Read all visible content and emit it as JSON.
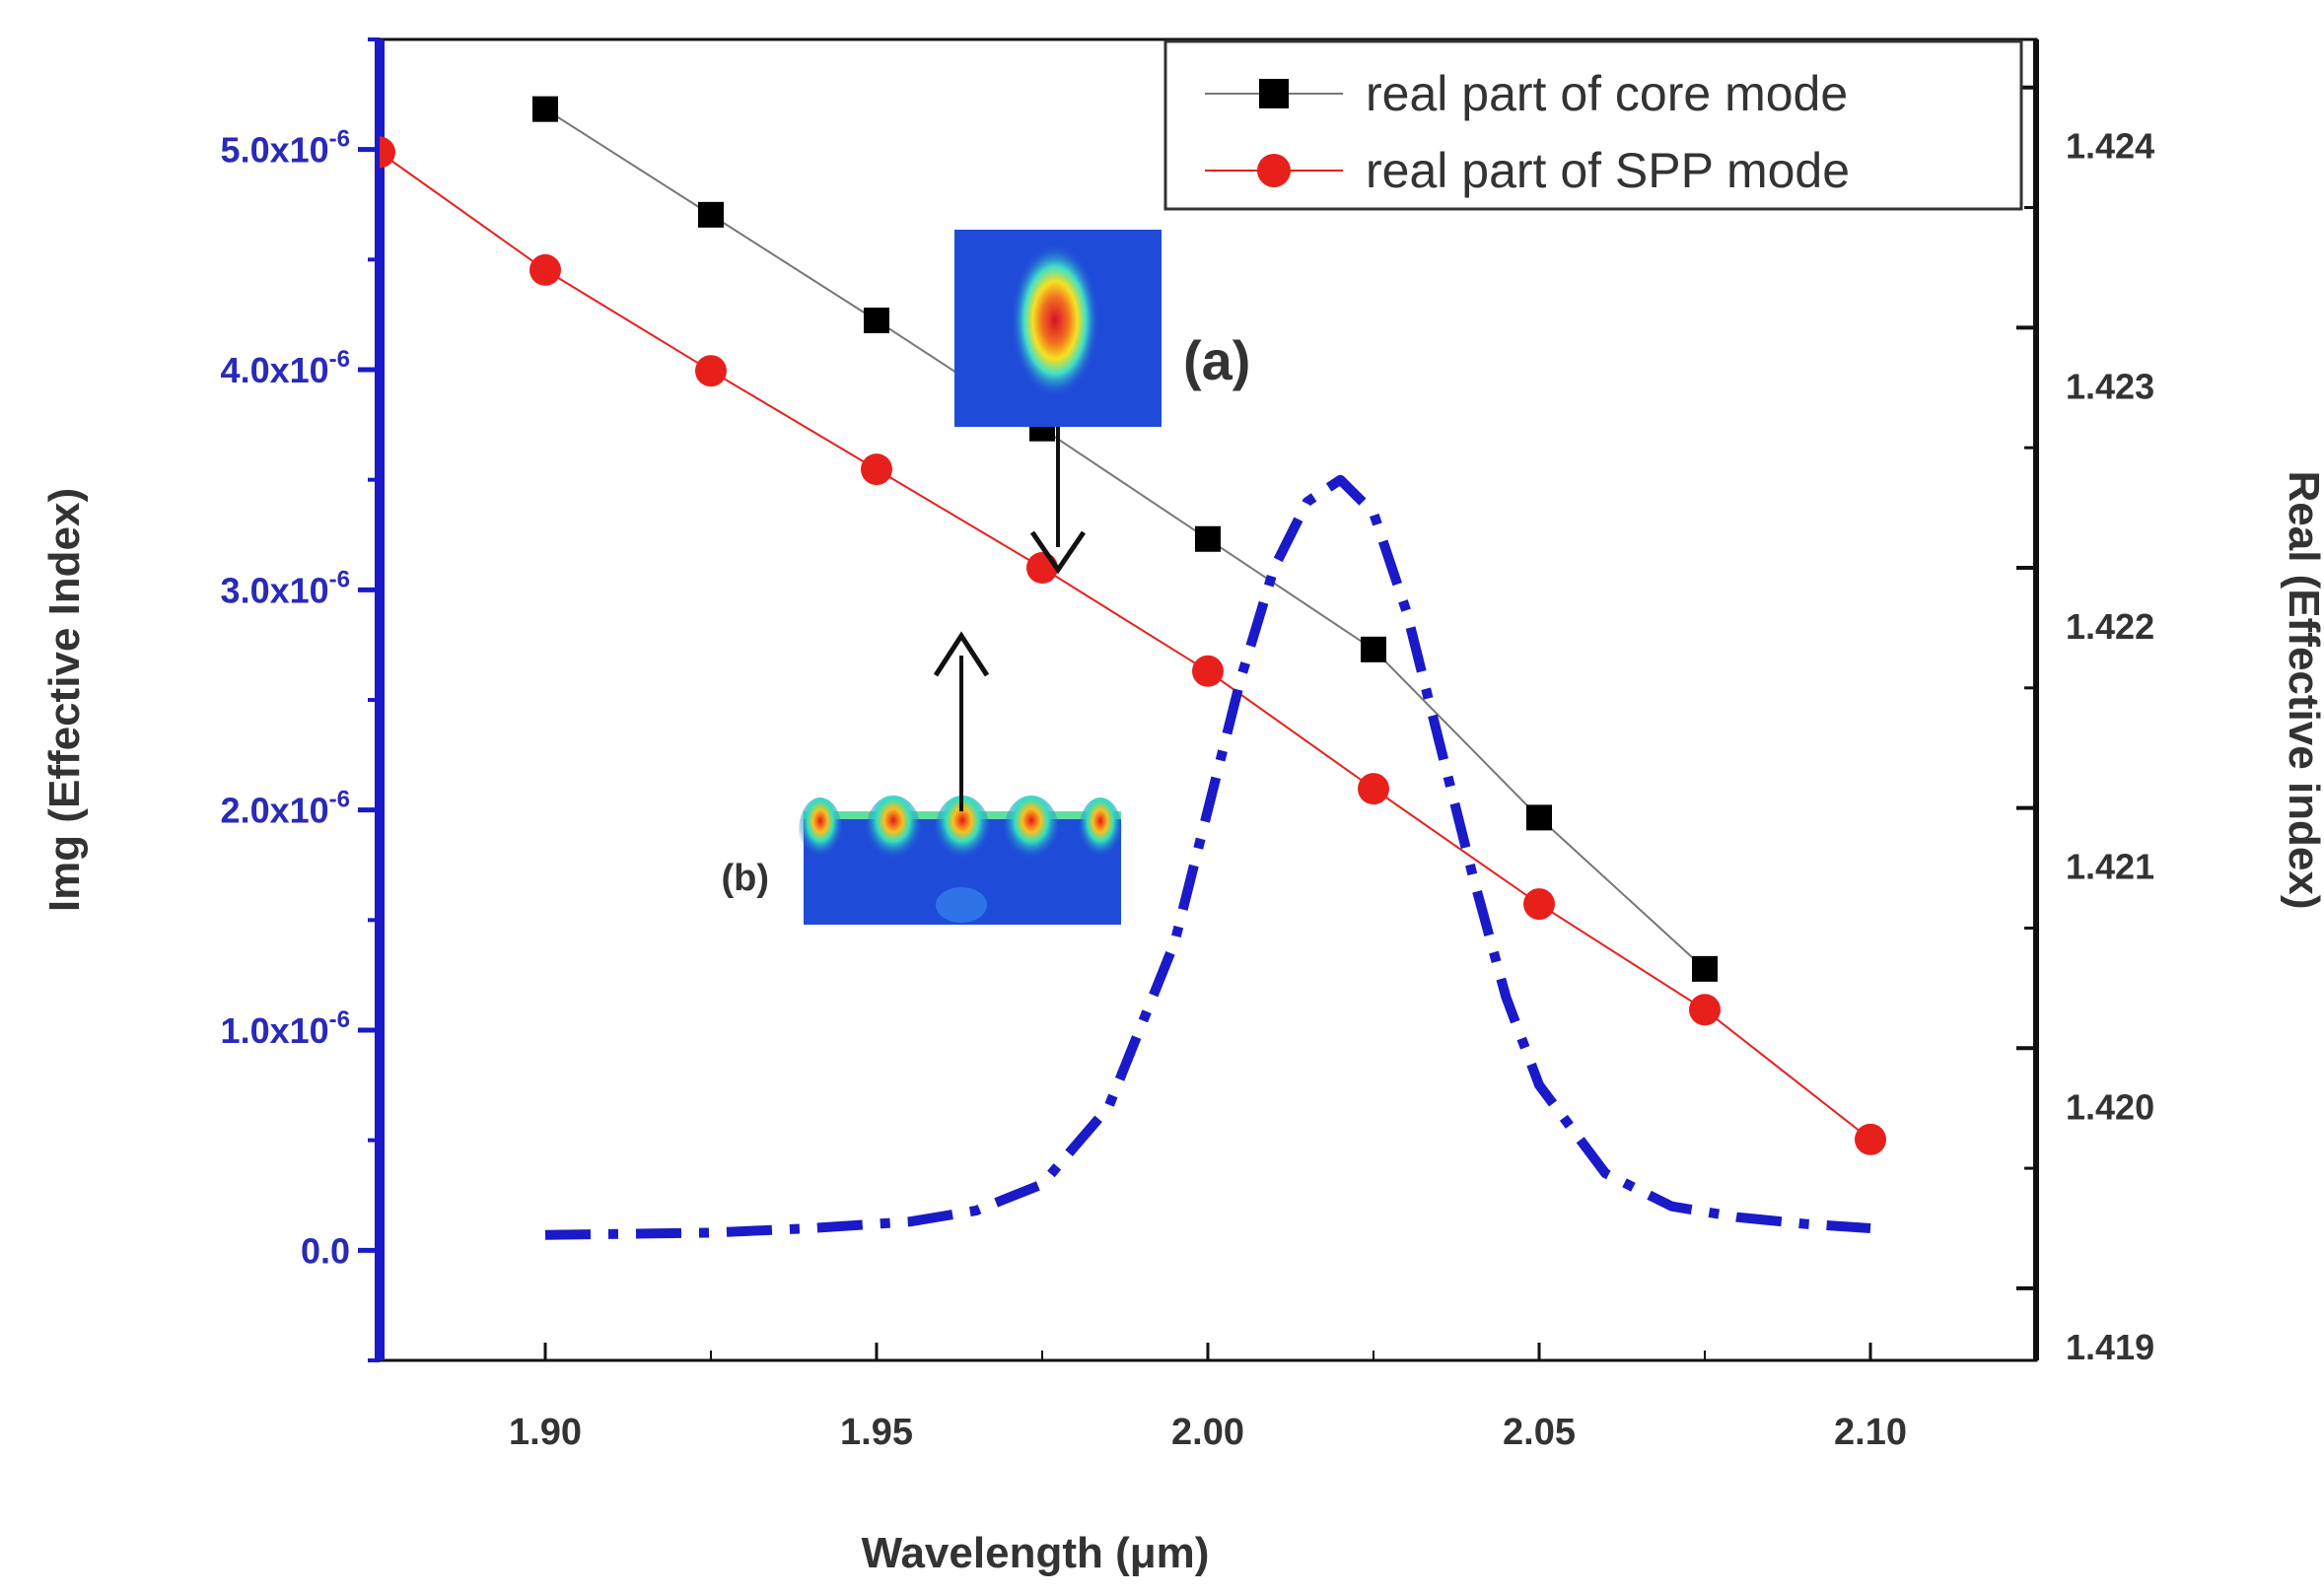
{
  "chart_data": {
    "type": "line",
    "xlabel": "Wavelength (μm)",
    "ylabel_left": "Img (Effective Index)",
    "ylabel_right": "Real (Effective index)",
    "xlim": [
      1.875,
      2.125
    ],
    "ylim_left": [
      -5e-07,
      5.5e-06
    ],
    "ylim_right": [
      1.4187,
      1.4242
    ],
    "x_ticks": [
      {
        "value": 1.9,
        "label": "1.90"
      },
      {
        "value": 1.95,
        "label": "1.95"
      },
      {
        "value": 2.0,
        "label": "2.00"
      },
      {
        "value": 2.05,
        "label": "2.05"
      },
      {
        "value": 2.1,
        "label": "2.10"
      }
    ],
    "left_ticks": [
      {
        "value": 0.0,
        "label": "0.0",
        "exp": ""
      },
      {
        "value": 1e-06,
        "label": "1.0x10",
        "exp": "-6"
      },
      {
        "value": 2e-06,
        "label": "2.0x10",
        "exp": "-6"
      },
      {
        "value": 3e-06,
        "label": "3.0x10",
        "exp": "-6"
      },
      {
        "value": 4e-06,
        "label": "4.0x10",
        "exp": "-6"
      },
      {
        "value": 5e-06,
        "label": "5.0x10",
        "exp": "-6"
      }
    ],
    "right_ticks": [
      {
        "value": 1.419,
        "label": "1.419"
      },
      {
        "value": 1.42,
        "label": "1.420"
      },
      {
        "value": 1.421,
        "label": "1.421"
      },
      {
        "value": 1.422,
        "label": "1.422"
      },
      {
        "value": 1.423,
        "label": "1.423"
      },
      {
        "value": 1.424,
        "label": "1.424"
      }
    ],
    "series": [
      {
        "name": "real part of core mode",
        "axis": "right",
        "marker": "square",
        "color": "#000000",
        "line_color": "#777777",
        "x": [
          1.9,
          1.925,
          1.95,
          1.975,
          2.0,
          2.025,
          2.05,
          2.075
        ],
        "y": [
          1.42391,
          1.42347,
          1.42303,
          1.42258,
          1.42212,
          1.42166,
          1.42096,
          1.42033
        ]
      },
      {
        "name": "real part of SPP mode",
        "axis": "right",
        "marker": "circle",
        "color": "#e8201c",
        "line_color": "#e8201c",
        "x": [
          1.875,
          1.9,
          1.925,
          1.95,
          1.975,
          2.0,
          2.025,
          2.05,
          2.075,
          2.1
        ],
        "y": [
          1.42373,
          1.42324,
          1.42282,
          1.42241,
          1.422,
          1.42157,
          1.42108,
          1.4206,
          1.42016,
          1.41962
        ]
      },
      {
        "name": "Img (Effective Index)",
        "axis": "left",
        "style": "dash-dot",
        "color": "#1a1ac8",
        "x": [
          1.9,
          1.925,
          1.94,
          1.955,
          1.965,
          1.975,
          1.985,
          1.995,
          2.005,
          2.01,
          2.015,
          2.02,
          2.025,
          2.03,
          2.035,
          2.04,
          2.045,
          2.05,
          2.06,
          2.07,
          2.08,
          2.09,
          2.1
        ],
        "y": [
          7e-08,
          8e-08,
          1e-07,
          1.3e-07,
          1.8e-07,
          3e-07,
          6.5e-07,
          1.4e-06,
          2.6e-06,
          3.1e-06,
          3.4e-06,
          3.5e-06,
          3.35e-06,
          2.9e-06,
          2.3e-06,
          1.7e-06,
          1.15e-06,
          7.5e-07,
          3.5e-07,
          2e-07,
          1.5e-07,
          1.2e-07,
          1e-07
        ]
      }
    ],
    "legend": {
      "position": "top-right",
      "entries": [
        "real part of core mode",
        "real part of SPP mode"
      ]
    },
    "annotations": [
      {
        "label": "(a)",
        "text": "core mode field profile",
        "arrow_to_wavelength": 1.99
      },
      {
        "label": "(b)",
        "text": "SPP mode field profile",
        "arrow_to_wavelength": 1.975
      }
    ]
  }
}
